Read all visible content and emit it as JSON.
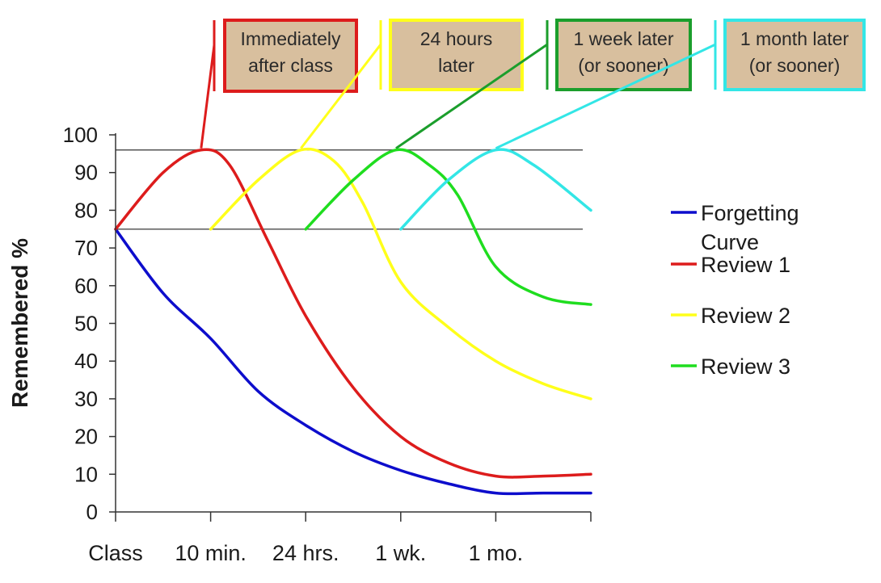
{
  "chart_data": {
    "type": "line",
    "ylabel": "Remembered %",
    "xlabel": "",
    "ylim": [
      0,
      100
    ],
    "yticks": [
      0,
      10,
      20,
      30,
      40,
      50,
      60,
      70,
      80,
      90,
      100
    ],
    "categories": [
      "Class",
      "10 min.",
      "24 hrs.",
      "1 wk.",
      "1 mo."
    ],
    "x_max": 5,
    "reference_lines": [
      96,
      75
    ],
    "legend_position": "right",
    "series": [
      {
        "name": "Forgetting Curve",
        "color": "#0d0dcc",
        "points": [
          [
            0,
            75
          ],
          [
            0.5,
            58
          ],
          [
            1,
            46
          ],
          [
            1.5,
            32
          ],
          [
            2,
            23
          ],
          [
            2.5,
            16
          ],
          [
            3,
            11
          ],
          [
            3.5,
            7.5
          ],
          [
            4,
            5
          ],
          [
            4.5,
            5
          ],
          [
            5,
            5
          ]
        ]
      },
      {
        "name": "Review 1",
        "color": "#dd1c1c",
        "points": [
          [
            0,
            75
          ],
          [
            0.5,
            90
          ],
          [
            0.9,
            96
          ],
          [
            1.2,
            92
          ],
          [
            1.6,
            72
          ],
          [
            2,
            52
          ],
          [
            2.5,
            33
          ],
          [
            3,
            20
          ],
          [
            3.5,
            13
          ],
          [
            4,
            9.5
          ],
          [
            4.5,
            9.5
          ],
          [
            5,
            10
          ]
        ]
      },
      {
        "name": "Review 2",
        "color": "#ffff1a",
        "points": [
          [
            1,
            75
          ],
          [
            1.5,
            88
          ],
          [
            1.95,
            96
          ],
          [
            2.3,
            93
          ],
          [
            2.6,
            82
          ],
          [
            3,
            61
          ],
          [
            3.5,
            49
          ],
          [
            4,
            40
          ],
          [
            4.5,
            34
          ],
          [
            5,
            30
          ]
        ]
      },
      {
        "name": "Review 3",
        "color": "#1fdd1f",
        "points": [
          [
            2,
            75
          ],
          [
            2.5,
            88
          ],
          [
            2.95,
            96
          ],
          [
            3.3,
            92
          ],
          [
            3.6,
            84
          ],
          [
            4,
            65
          ],
          [
            4.5,
            57
          ],
          [
            5,
            55
          ]
        ]
      },
      {
        "name": "",
        "color": "#33e6e6",
        "points": [
          [
            3,
            75
          ],
          [
            3.5,
            88
          ],
          [
            4,
            96
          ],
          [
            4.4,
            92
          ],
          [
            5,
            80
          ]
        ]
      }
    ],
    "annotations": [
      {
        "lines": [
          "Immediately",
          "after class"
        ],
        "border": "#dd1c1c",
        "points_to_series": 1
      },
      {
        "lines": [
          "24 hours",
          "later"
        ],
        "border": "#ffff1a",
        "points_to_series": 2
      },
      {
        "lines": [
          "1 week later",
          "(or sooner)"
        ],
        "border": "#1b9e2c",
        "points_to_series": 3
      },
      {
        "lines": [
          "1 month later",
          "(or sooner)"
        ],
        "border": "#33e6e6",
        "points_to_series": 4
      }
    ]
  }
}
